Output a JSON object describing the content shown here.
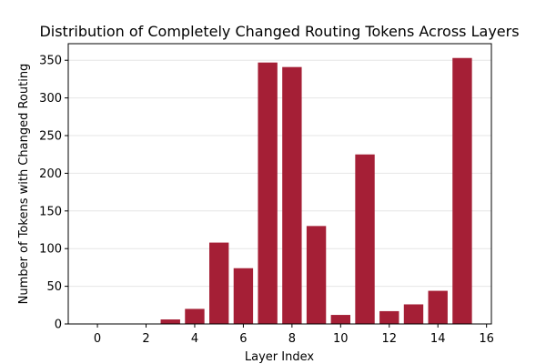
{
  "chart_data": {
    "type": "bar",
    "title": "Distribution of Completely Changed Routing Tokens Across Layers",
    "xlabel": "Layer Index",
    "ylabel": "Number of Tokens with Changed Routing",
    "x": [
      0,
      1,
      2,
      3,
      4,
      5,
      6,
      7,
      8,
      9,
      10,
      11,
      12,
      13,
      14,
      15
    ],
    "values": [
      0,
      0,
      0,
      6,
      20,
      108,
      74,
      347,
      341,
      130,
      12,
      225,
      17,
      26,
      44,
      353
    ],
    "xlim": [
      -1.2,
      16.2
    ],
    "ylim": [
      0,
      372
    ],
    "xticks": [
      0,
      2,
      4,
      6,
      8,
      10,
      12,
      14,
      16
    ],
    "yticks": [
      0,
      50,
      100,
      150,
      200,
      250,
      300,
      350
    ],
    "bar_color": "#a51f36",
    "grid": "y",
    "legend": "none"
  }
}
